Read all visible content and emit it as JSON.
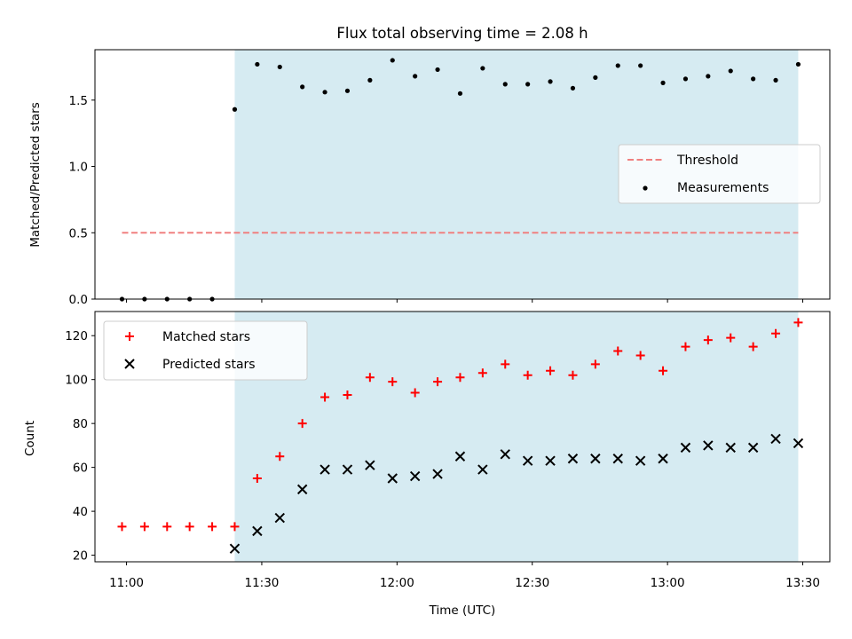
{
  "chart_data": [
    {
      "type": "scatter",
      "title": "Flux total observing time = 2.08 h",
      "xlabel": "",
      "ylabel": "Matched/Predicted stars",
      "x_unit": "time (UTC)",
      "xlim": [
        "10:53",
        "13:36"
      ],
      "ylim": [
        0,
        1.88
      ],
      "y_ticks": [
        0.0,
        0.5,
        1.0,
        1.5
      ],
      "y_tick_labels": [
        "0.0",
        "0.5",
        "1.0",
        "1.5"
      ],
      "x_tick_labels_shown": false,
      "shaded_region": {
        "from": "11:24",
        "to": "13:29",
        "color": "#add8e6"
      },
      "legend": {
        "placement": "center-right",
        "entries": [
          "Threshold",
          "Measurements"
        ]
      },
      "series": [
        {
          "name": "Threshold",
          "style": "dashed-line",
          "color": "#f08080",
          "x": [
            "10:59",
            "13:29"
          ],
          "values": [
            0.5,
            0.5
          ]
        },
        {
          "name": "Measurements",
          "style": "dot",
          "color": "#000000",
          "x": [
            "10:59",
            "11:04",
            "11:09",
            "11:14",
            "11:19",
            "11:24",
            "11:29",
            "11:34",
            "11:39",
            "11:44",
            "11:49",
            "11:54",
            "11:59",
            "12:04",
            "12:09",
            "12:14",
            "12:19",
            "12:24",
            "12:29",
            "12:34",
            "12:39",
            "12:44",
            "12:49",
            "12:54",
            "12:59",
            "13:04",
            "13:09",
            "13:14",
            "13:19",
            "13:24",
            "13:29"
          ],
          "values": [
            0,
            0,
            0,
            0,
            0,
            1.43,
            1.77,
            1.75,
            1.6,
            1.56,
            1.57,
            1.65,
            1.8,
            1.68,
            1.73,
            1.55,
            1.74,
            1.62,
            1.62,
            1.64,
            1.59,
            1.67,
            1.76,
            1.76,
            1.63,
            1.66,
            1.68,
            1.72,
            1.66,
            1.65,
            1.77
          ]
        }
      ]
    },
    {
      "type": "scatter",
      "title": "",
      "xlabel": "Time (UTC)",
      "ylabel": "Count",
      "xlim": [
        "10:53",
        "13:36"
      ],
      "ylim": [
        17,
        131
      ],
      "y_ticks": [
        20,
        40,
        60,
        80,
        100,
        120
      ],
      "y_tick_labels": [
        "20",
        "40",
        "60",
        "80",
        "100",
        "120"
      ],
      "x_ticks": [
        "11:00",
        "11:30",
        "12:00",
        "12:30",
        "13:00",
        "13:30"
      ],
      "x_tick_labels": [
        "11:00",
        "11:30",
        "12:00",
        "12:30",
        "13:00",
        "13:30"
      ],
      "shaded_region": {
        "from": "11:24",
        "to": "13:29",
        "color": "#add8e6"
      },
      "legend": {
        "placement": "top-left",
        "entries": [
          "Matched stars",
          "Predicted stars"
        ]
      },
      "series": [
        {
          "name": "Matched stars",
          "marker": "plus",
          "color": "#ff0000",
          "x": [
            "10:59",
            "11:04",
            "11:09",
            "11:14",
            "11:19",
            "11:24",
            "11:29",
            "11:34",
            "11:39",
            "11:44",
            "11:49",
            "11:54",
            "11:59",
            "12:04",
            "12:09",
            "12:14",
            "12:19",
            "12:24",
            "12:29",
            "12:34",
            "12:39",
            "12:44",
            "12:49",
            "12:54",
            "12:59",
            "13:04",
            "13:09",
            "13:14",
            "13:19",
            "13:24",
            "13:29"
          ],
          "values": [
            33,
            33,
            33,
            33,
            33,
            33,
            55,
            65,
            80,
            92,
            93,
            101,
            99,
            94,
            99,
            101,
            103,
            107,
            102,
            104,
            102,
            107,
            113,
            111,
            104,
            115,
            118,
            119,
            115,
            121,
            126
          ]
        },
        {
          "name": "Predicted stars",
          "marker": "x",
          "color": "#000000",
          "x": [
            "11:24",
            "11:29",
            "11:34",
            "11:39",
            "11:44",
            "11:49",
            "11:54",
            "11:59",
            "12:04",
            "12:09",
            "12:14",
            "12:19",
            "12:24",
            "12:29",
            "12:34",
            "12:39",
            "12:44",
            "12:49",
            "12:54",
            "12:59",
            "13:04",
            "13:09",
            "13:14",
            "13:19",
            "13:24",
            "13:29"
          ],
          "values": [
            23,
            31,
            37,
            50,
            59,
            59,
            61,
            55,
            56,
            57,
            65,
            59,
            66,
            63,
            63,
            64,
            64,
            64,
            63,
            64,
            69,
            70,
            69,
            69,
            73,
            71
          ]
        }
      ]
    }
  ]
}
